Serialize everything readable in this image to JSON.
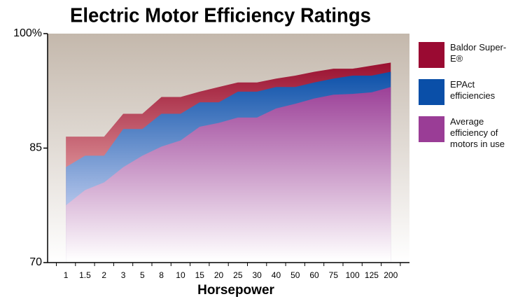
{
  "chart_data": {
    "type": "area",
    "title": "Electric Motor Efficiency Ratings",
    "x_label": "Horsepower",
    "categories": [
      "1",
      "1.5",
      "2",
      "3",
      "5",
      "8",
      "10",
      "15",
      "20",
      "25",
      "30",
      "40",
      "50",
      "60",
      "75",
      "100",
      "125",
      "200"
    ],
    "series": [
      {
        "name": "Baldor Super-E®",
        "color": "#9a0a32",
        "values": [
          86.5,
          86.5,
          86.5,
          89.5,
          89.5,
          91.7,
          91.7,
          92.4,
          93.0,
          93.6,
          93.6,
          94.1,
          94.5,
          95.0,
          95.4,
          95.4,
          95.8,
          96.2
        ]
      },
      {
        "name": "EPAct efficiencies",
        "color": "#0a4fa8",
        "values": [
          82.5,
          84.0,
          84.0,
          87.5,
          87.5,
          89.5,
          89.5,
          91.0,
          91.0,
          92.4,
          92.4,
          93.0,
          93.0,
          93.6,
          94.1,
          94.5,
          94.5,
          95.0
        ]
      },
      {
        "name": "Average efficiency of motors in use",
        "color": "#9a3d96",
        "values": [
          77.5,
          79.5,
          80.5,
          82.5,
          84.0,
          85.2,
          86.0,
          87.8,
          88.3,
          89.0,
          89.0,
          90.2,
          90.8,
          91.5,
          92.0,
          92.1,
          92.3,
          93.0
        ]
      }
    ],
    "ylim": [
      70,
      100
    ],
    "yticks": [
      70,
      85,
      {
        "value": 100,
        "label": "100%"
      }
    ],
    "legend": "right"
  }
}
